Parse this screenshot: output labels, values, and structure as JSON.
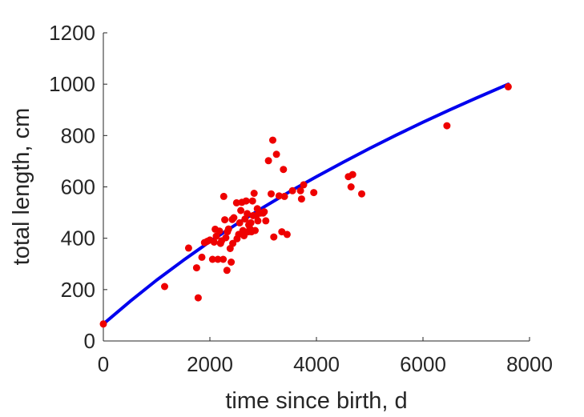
{
  "chart_data": {
    "type": "scatter",
    "xlabel": "time since birth, d",
    "ylabel": "total length, cm",
    "xlim": [
      0,
      8000
    ],
    "ylim": [
      0,
      1200
    ],
    "xticks": [
      "0",
      "2000",
      "4000",
      "6000",
      "8000"
    ],
    "yticks": [
      "0",
      "200",
      "400",
      "600",
      "800",
      "1000",
      "1200"
    ],
    "grid": false,
    "legend": "none",
    "series": [
      {
        "type": "line",
        "color": "#0000ee",
        "points": [
          [
            0,
            66
          ],
          [
            500,
            154
          ],
          [
            1000,
            237
          ],
          [
            1500,
            314
          ],
          [
            2000,
            387
          ],
          [
            2500,
            455
          ],
          [
            3000,
            520
          ],
          [
            3500,
            582
          ],
          [
            4000,
            640
          ],
          [
            4500,
            696
          ],
          [
            5000,
            750
          ],
          [
            5500,
            802
          ],
          [
            6000,
            852
          ],
          [
            6500,
            900
          ],
          [
            7000,
            946
          ],
          [
            7600,
            1000
          ]
        ]
      },
      {
        "type": "scatter",
        "color": "#ee0000",
        "points": [
          [
            0,
            66
          ],
          [
            1150,
            212
          ],
          [
            1600,
            362
          ],
          [
            1750,
            285
          ],
          [
            1780,
            168
          ],
          [
            1850,
            326
          ],
          [
            1900,
            383
          ],
          [
            1950,
            388
          ],
          [
            2000,
            393
          ],
          [
            2050,
            318
          ],
          [
            2080,
            385
          ],
          [
            2100,
            435
          ],
          [
            2120,
            408
          ],
          [
            2150,
            318
          ],
          [
            2180,
            428
          ],
          [
            2200,
            380
          ],
          [
            2220,
            390
          ],
          [
            2250,
            318
          ],
          [
            2260,
            563
          ],
          [
            2280,
            472
          ],
          [
            2300,
            402
          ],
          [
            2320,
            275
          ],
          [
            2330,
            425
          ],
          [
            2350,
            436
          ],
          [
            2380,
            360
          ],
          [
            2400,
            307
          ],
          [
            2420,
            473
          ],
          [
            2430,
            380
          ],
          [
            2450,
            480
          ],
          [
            2500,
            538
          ],
          [
            2510,
            398
          ],
          [
            2540,
            415
          ],
          [
            2560,
            460
          ],
          [
            2580,
            508
          ],
          [
            2600,
            540
          ],
          [
            2620,
            430
          ],
          [
            2640,
            410
          ],
          [
            2660,
            475
          ],
          [
            2680,
            545
          ],
          [
            2700,
            496
          ],
          [
            2720,
            425
          ],
          [
            2730,
            452
          ],
          [
            2750,
            438
          ],
          [
            2770,
            460
          ],
          [
            2780,
            425
          ],
          [
            2800,
            545
          ],
          [
            2810,
            488
          ],
          [
            2830,
            575
          ],
          [
            2850,
            430
          ],
          [
            2870,
            488
          ],
          [
            2890,
            515
          ],
          [
            2900,
            468
          ],
          [
            2950,
            498
          ],
          [
            3000,
            498
          ],
          [
            3020,
            503
          ],
          [
            3050,
            468
          ],
          [
            3100,
            702
          ],
          [
            3150,
            573
          ],
          [
            3180,
            782
          ],
          [
            3200,
            405
          ],
          [
            3250,
            727
          ],
          [
            3300,
            565
          ],
          [
            3350,
            425
          ],
          [
            3380,
            668
          ],
          [
            3400,
            563
          ],
          [
            3450,
            415
          ],
          [
            3550,
            585
          ],
          [
            3700,
            585
          ],
          [
            3720,
            553
          ],
          [
            3760,
            608
          ],
          [
            3950,
            578
          ],
          [
            4600,
            640
          ],
          [
            4650,
            600
          ],
          [
            4680,
            648
          ],
          [
            4850,
            573
          ],
          [
            6450,
            838
          ],
          [
            7600,
            990
          ]
        ]
      }
    ]
  }
}
